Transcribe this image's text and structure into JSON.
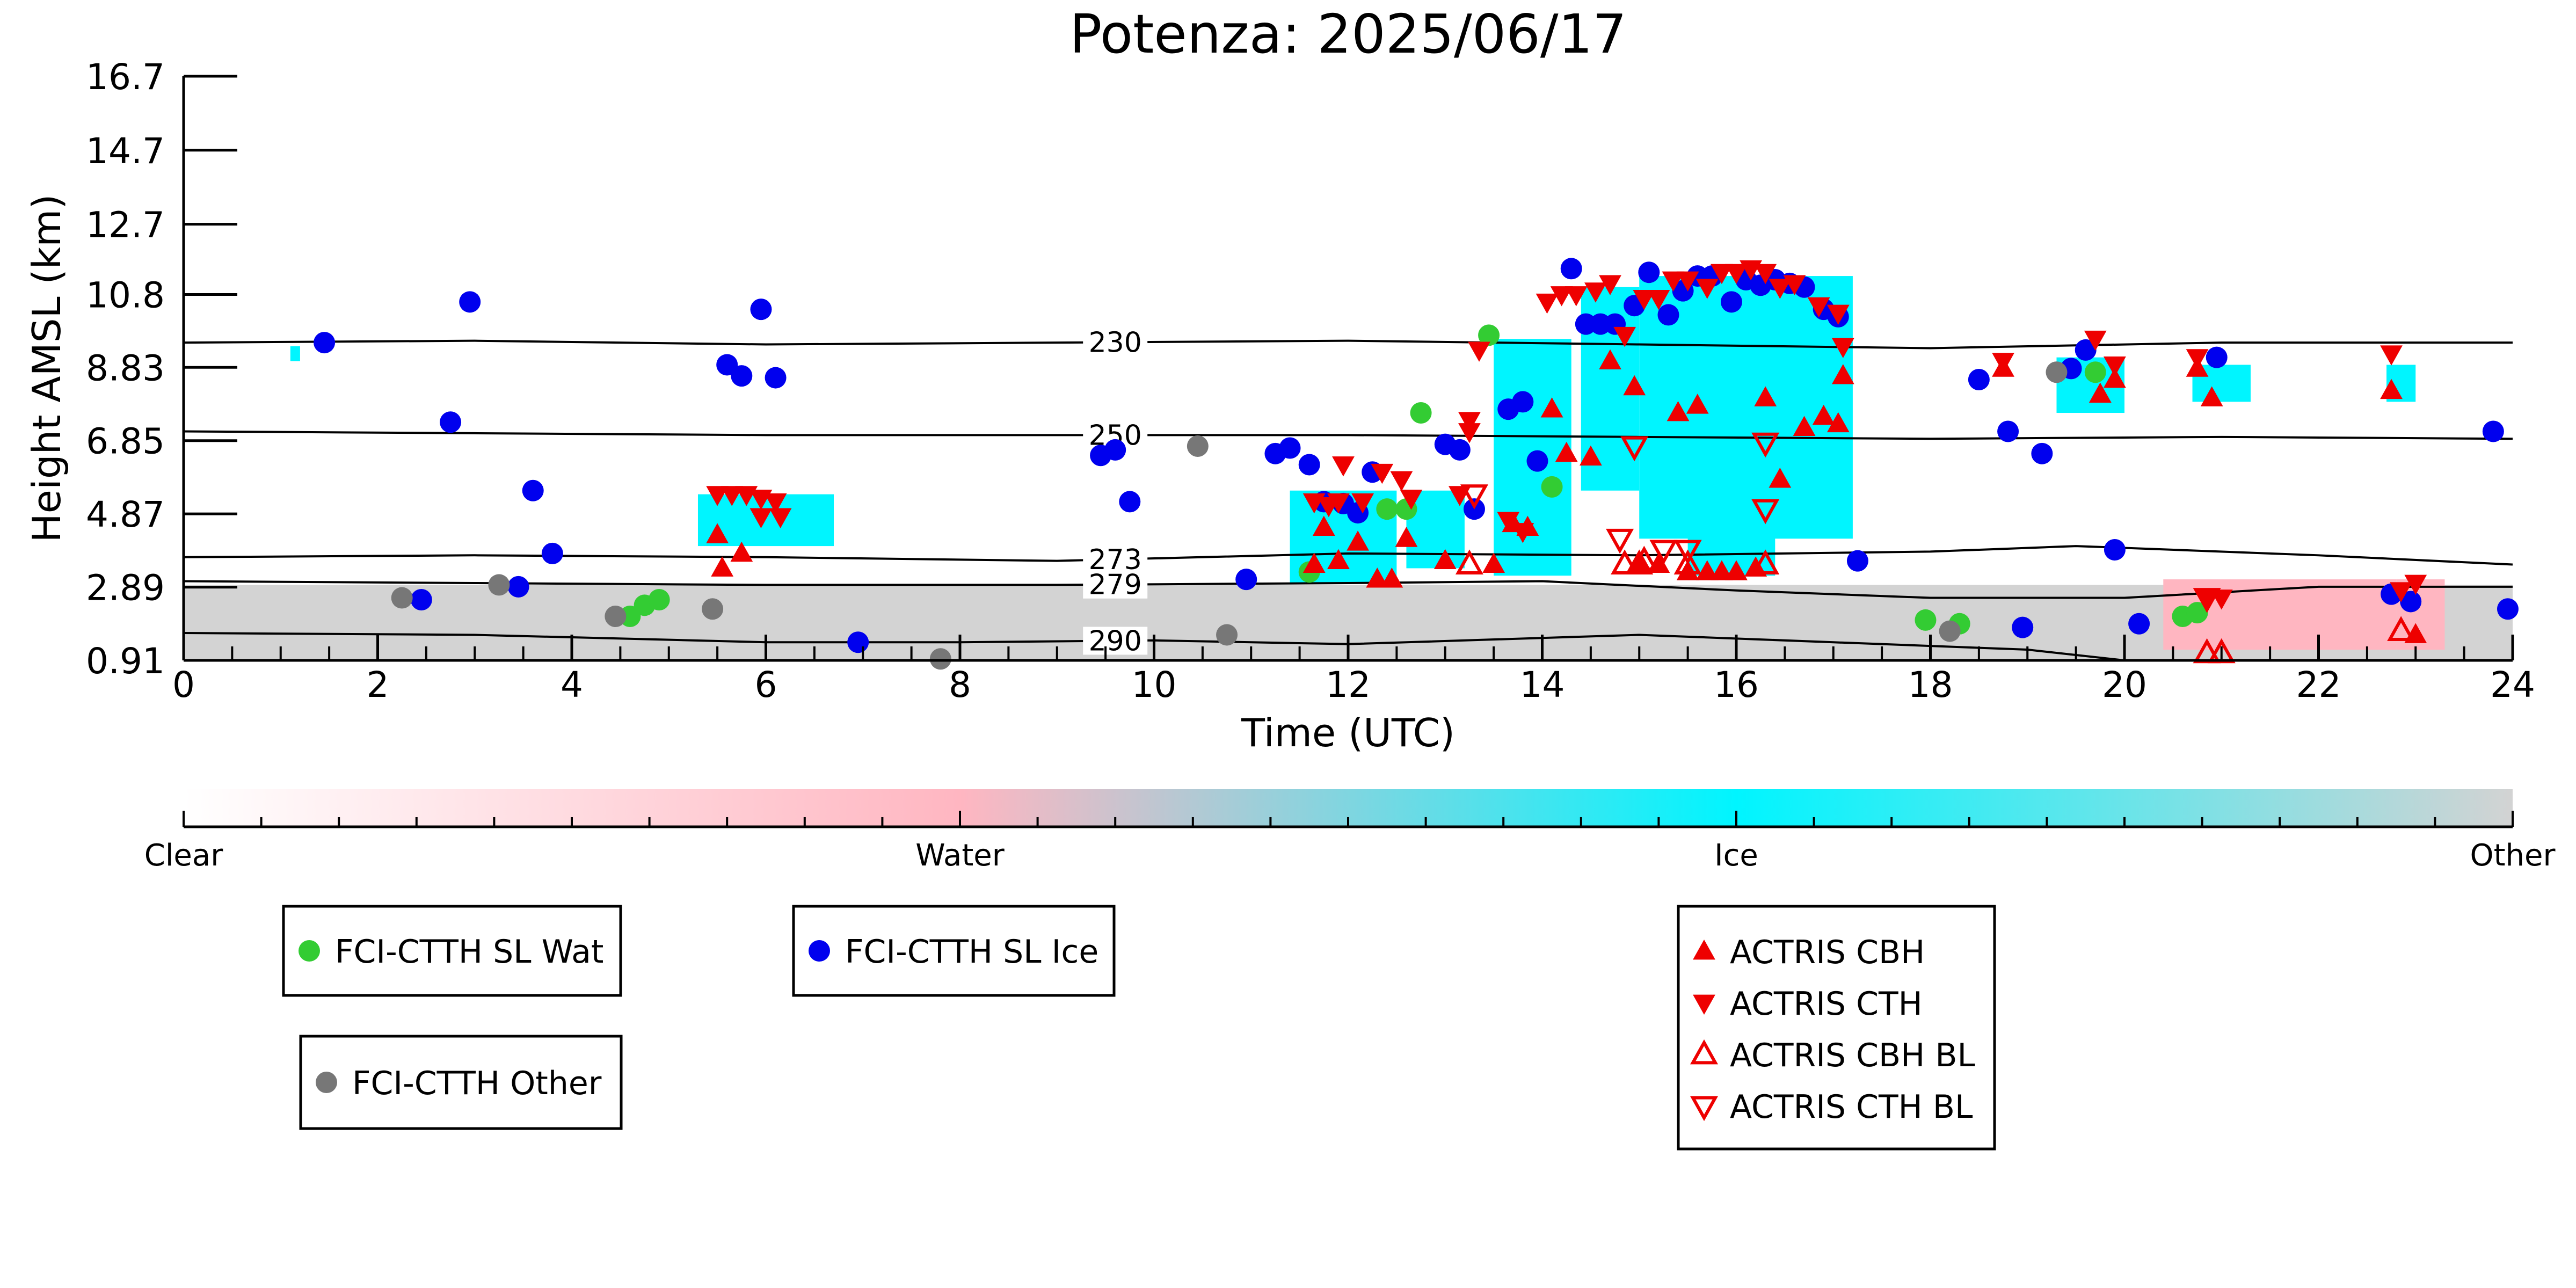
{
  "chart_data": {
    "type": "scatter",
    "title": "Potenza: 2025/06/17",
    "xlabel": "Time (UTC)",
    "ylabel": "Height AMSL (km)",
    "xlim": [
      0,
      24
    ],
    "ylim": [
      0.91,
      16.7
    ],
    "x_ticks": [
      "0",
      "2",
      "4",
      "6",
      "8",
      "10",
      "12",
      "14",
      "16",
      "18",
      "20",
      "22",
      "24"
    ],
    "y_ticks": [
      "0.91",
      "2.89",
      "4.87",
      "6.85",
      "8.83",
      "10.8",
      "12.7",
      "14.7",
      "16.7"
    ],
    "y_tick_values": [
      0.91,
      2.89,
      4.87,
      6.85,
      8.83,
      10.8,
      12.7,
      14.7,
      16.7
    ],
    "grid": false,
    "isotherms": [
      {
        "label": "230",
        "label_x": 9.6,
        "points": [
          [
            0,
            9.5
          ],
          [
            3,
            9.55
          ],
          [
            6,
            9.45
          ],
          [
            9,
            9.5
          ],
          [
            12,
            9.55
          ],
          [
            15,
            9.45
          ],
          [
            18,
            9.35
          ],
          [
            21,
            9.5
          ],
          [
            24,
            9.5
          ]
        ]
      },
      {
        "label": "250",
        "label_x": 9.6,
        "points": [
          [
            0,
            7.1
          ],
          [
            3,
            7.05
          ],
          [
            6,
            7.0
          ],
          [
            9,
            7.0
          ],
          [
            12,
            7.0
          ],
          [
            15,
            6.95
          ],
          [
            18,
            6.9
          ],
          [
            21,
            6.95
          ],
          [
            24,
            6.9
          ]
        ]
      },
      {
        "label": "273",
        "label_x": 9.6,
        "points": [
          [
            0,
            3.7
          ],
          [
            3,
            3.75
          ],
          [
            6,
            3.7
          ],
          [
            9,
            3.6
          ],
          [
            12,
            3.8
          ],
          [
            15,
            3.75
          ],
          [
            18,
            3.85
          ],
          [
            19.5,
            4.0
          ],
          [
            22,
            3.75
          ],
          [
            24,
            3.5
          ]
        ]
      },
      {
        "label": "279",
        "label_x": 9.6,
        "points": [
          [
            0,
            3.05
          ],
          [
            3,
            3.0
          ],
          [
            6,
            2.95
          ],
          [
            9,
            2.95
          ],
          [
            12,
            3.0
          ],
          [
            14,
            3.05
          ],
          [
            16,
            2.8
          ],
          [
            18,
            2.6
          ],
          [
            20,
            2.6
          ],
          [
            22,
            2.9
          ],
          [
            24,
            2.9
          ]
        ]
      },
      {
        "label": "290",
        "label_x": 9.6,
        "points": [
          [
            0,
            1.65
          ],
          [
            3,
            1.6
          ],
          [
            6,
            1.4
          ],
          [
            8,
            1.4
          ],
          [
            10,
            1.45
          ],
          [
            12,
            1.35
          ],
          [
            15,
            1.6
          ],
          [
            17,
            1.4
          ],
          [
            19,
            1.2
          ],
          [
            20,
            0.91
          ]
        ]
      }
    ],
    "cloud_mask_regions": [
      {
        "class": "Other",
        "x0": 0,
        "x1": 24,
        "y0": 0.91,
        "y1": 2.95
      },
      {
        "class": "Water",
        "x0": 20.4,
        "x1": 22.8,
        "y0": 1.2,
        "y1": 3.1
      },
      {
        "class": "Water",
        "x0": 22.8,
        "x1": 23.3,
        "y0": 1.2,
        "y1": 3.1
      },
      {
        "class": "Ice",
        "x0": 5.3,
        "x1": 6.7,
        "y0": 4.0,
        "y1": 5.4
      },
      {
        "class": "Ice",
        "x0": 11.4,
        "x1": 12.5,
        "y0": 3.0,
        "y1": 5.5
      },
      {
        "class": "Ice",
        "x0": 12.6,
        "x1": 13.2,
        "y0": 3.4,
        "y1": 5.5
      },
      {
        "class": "Ice",
        "x0": 13.5,
        "x1": 14.3,
        "y0": 3.2,
        "y1": 9.6
      },
      {
        "class": "Ice",
        "x0": 14.4,
        "x1": 15.0,
        "y0": 5.5,
        "y1": 11.0
      },
      {
        "class": "Ice",
        "x0": 15.0,
        "x1": 17.2,
        "y0": 4.2,
        "y1": 11.3
      },
      {
        "class": "Ice",
        "x0": 15.5,
        "x1": 16.4,
        "y0": 3.2,
        "y1": 6.5
      },
      {
        "class": "Ice",
        "x0": 19.3,
        "x1": 20.0,
        "y0": 7.6,
        "y1": 9.1
      },
      {
        "class": "Ice",
        "x0": 20.7,
        "x1": 21.3,
        "y0": 7.9,
        "y1": 8.9
      },
      {
        "class": "Ice",
        "x0": 22.7,
        "x1": 23.0,
        "y0": 7.9,
        "y1": 8.9
      },
      {
        "class": "Ice",
        "x0": 1.1,
        "x1": 1.2,
        "y0": 9.0,
        "y1": 9.4
      }
    ],
    "series": [
      {
        "name": "FCI-CTTH SL Wat",
        "marker": "circle",
        "color": "#33cc33",
        "points": [
          [
            4.6,
            2.1
          ],
          [
            4.75,
            2.4
          ],
          [
            4.9,
            2.55
          ],
          [
            11.6,
            3.3
          ],
          [
            12.4,
            5.0
          ],
          [
            12.6,
            5.0
          ],
          [
            12.75,
            7.6
          ],
          [
            13.45,
            9.7
          ],
          [
            14.1,
            5.6
          ],
          [
            17.95,
            2.0
          ],
          [
            18.3,
            1.9
          ],
          [
            19.7,
            8.7
          ],
          [
            20.6,
            2.1
          ],
          [
            20.75,
            2.2
          ]
        ]
      },
      {
        "name": "FCI-CTTH SL Ice",
        "marker": "circle",
        "color": "#0000ee",
        "points": [
          [
            1.45,
            9.5
          ],
          [
            2.45,
            2.55
          ],
          [
            2.75,
            7.35
          ],
          [
            2.95,
            10.6
          ],
          [
            3.45,
            2.9
          ],
          [
            3.6,
            5.5
          ],
          [
            3.8,
            3.8
          ],
          [
            5.6,
            8.9
          ],
          [
            5.75,
            8.6
          ],
          [
            5.95,
            10.4
          ],
          [
            6.1,
            8.55
          ],
          [
            6.95,
            1.4
          ],
          [
            9.45,
            6.45
          ],
          [
            9.6,
            6.6
          ],
          [
            9.75,
            5.2
          ],
          [
            10.95,
            3.1
          ],
          [
            11.25,
            6.5
          ],
          [
            11.4,
            6.65
          ],
          [
            11.6,
            6.2
          ],
          [
            11.75,
            5.2
          ],
          [
            11.95,
            5.15
          ],
          [
            12.1,
            4.9
          ],
          [
            12.25,
            6.0
          ],
          [
            13.0,
            6.75
          ],
          [
            13.15,
            6.6
          ],
          [
            13.3,
            5.0
          ],
          [
            13.65,
            7.7
          ],
          [
            13.8,
            7.9
          ],
          [
            13.95,
            6.3
          ],
          [
            14.3,
            11.5
          ],
          [
            14.45,
            10.0
          ],
          [
            14.6,
            10.0
          ],
          [
            14.75,
            10.0
          ],
          [
            14.95,
            10.5
          ],
          [
            15.1,
            11.4
          ],
          [
            15.3,
            10.25
          ],
          [
            15.45,
            10.9
          ],
          [
            15.6,
            11.3
          ],
          [
            15.75,
            11.3
          ],
          [
            15.95,
            10.6
          ],
          [
            16.1,
            11.2
          ],
          [
            16.25,
            11.05
          ],
          [
            16.4,
            11.2
          ],
          [
            16.55,
            11.1
          ],
          [
            16.7,
            11.0
          ],
          [
            16.9,
            10.4
          ],
          [
            17.05,
            10.2
          ],
          [
            17.25,
            3.6
          ],
          [
            18.5,
            8.5
          ],
          [
            18.8,
            7.1
          ],
          [
            18.95,
            1.8
          ],
          [
            19.15,
            6.5
          ],
          [
            19.45,
            8.8
          ],
          [
            19.6,
            9.3
          ],
          [
            19.9,
            3.9
          ],
          [
            20.15,
            1.9
          ],
          [
            20.95,
            9.1
          ],
          [
            22.75,
            2.7
          ],
          [
            22.95,
            2.5
          ],
          [
            23.8,
            7.1
          ],
          [
            23.95,
            2.3
          ]
        ]
      },
      {
        "name": "FCI-CTTH Other",
        "marker": "circle",
        "color": "#777777",
        "points": [
          [
            2.25,
            2.6
          ],
          [
            3.25,
            2.95
          ],
          [
            4.45,
            2.1
          ],
          [
            5.45,
            2.3
          ],
          [
            7.8,
            0.95
          ],
          [
            10.45,
            6.7
          ],
          [
            10.75,
            1.6
          ],
          [
            19.3,
            8.7
          ],
          [
            18.2,
            1.7
          ]
        ]
      },
      {
        "name": "ACTRIS CBH",
        "marker": "triangle-up",
        "color": "#ee0000",
        "filled": true,
        "points": [
          [
            5.5,
            4.3
          ],
          [
            5.55,
            3.4
          ],
          [
            5.75,
            3.8
          ],
          [
            11.65,
            3.5
          ],
          [
            11.75,
            4.5
          ],
          [
            11.9,
            3.6
          ],
          [
            12.1,
            4.1
          ],
          [
            12.3,
            3.1
          ],
          [
            12.45,
            3.1
          ],
          [
            12.6,
            4.2
          ],
          [
            13.0,
            3.6
          ],
          [
            13.5,
            3.5
          ],
          [
            13.7,
            4.6
          ],
          [
            13.85,
            4.5
          ],
          [
            14.1,
            7.7
          ],
          [
            14.25,
            6.5
          ],
          [
            14.5,
            6.4
          ],
          [
            14.7,
            9.0
          ],
          [
            14.95,
            8.3
          ],
          [
            15.0,
            3.5
          ],
          [
            15.2,
            3.5
          ],
          [
            15.4,
            7.6
          ],
          [
            15.5,
            3.3
          ],
          [
            15.6,
            7.8
          ],
          [
            15.7,
            3.3
          ],
          [
            15.85,
            3.3
          ],
          [
            16.0,
            3.3
          ],
          [
            16.2,
            3.4
          ],
          [
            16.3,
            8.0
          ],
          [
            16.45,
            5.8
          ],
          [
            16.7,
            7.2
          ],
          [
            16.9,
            7.5
          ],
          [
            17.05,
            7.3
          ],
          [
            17.1,
            8.6
          ],
          [
            18.75,
            8.8
          ],
          [
            19.75,
            8.1
          ],
          [
            19.9,
            8.5
          ],
          [
            20.75,
            8.8
          ],
          [
            20.9,
            8.0
          ],
          [
            22.75,
            8.2
          ],
          [
            23.0,
            1.6
          ]
        ]
      },
      {
        "name": "ACTRIS CTH",
        "marker": "triangle-down",
        "color": "#ee0000",
        "filled": true,
        "points": [
          [
            5.5,
            5.4
          ],
          [
            5.65,
            5.4
          ],
          [
            5.8,
            5.4
          ],
          [
            5.95,
            5.3
          ],
          [
            6.1,
            5.2
          ],
          [
            5.95,
            4.8
          ],
          [
            6.15,
            4.8
          ],
          [
            11.65,
            5.2
          ],
          [
            11.8,
            5.1
          ],
          [
            11.9,
            5.2
          ],
          [
            12.15,
            5.2
          ],
          [
            12.35,
            6.0
          ],
          [
            12.55,
            5.8
          ],
          [
            12.65,
            5.3
          ],
          [
            11.95,
            6.2
          ],
          [
            13.15,
            5.4
          ],
          [
            13.25,
            7.4
          ],
          [
            13.35,
            9.3
          ],
          [
            13.25,
            7.1
          ],
          [
            13.65,
            4.7
          ],
          [
            13.8,
            4.4
          ],
          [
            14.05,
            10.6
          ],
          [
            14.2,
            10.8
          ],
          [
            14.35,
            10.8
          ],
          [
            14.55,
            10.9
          ],
          [
            14.7,
            11.1
          ],
          [
            14.85,
            9.7
          ],
          [
            15.05,
            10.7
          ],
          [
            15.2,
            10.7
          ],
          [
            15.35,
            11.2
          ],
          [
            15.5,
            11.2
          ],
          [
            15.7,
            11.0
          ],
          [
            15.85,
            11.4
          ],
          [
            16.0,
            11.4
          ],
          [
            16.15,
            11.5
          ],
          [
            16.3,
            11.4
          ],
          [
            16.45,
            11.0
          ],
          [
            16.6,
            11.1
          ],
          [
            16.85,
            10.5
          ],
          [
            17.05,
            10.3
          ],
          [
            17.1,
            9.4
          ],
          [
            18.75,
            9.0
          ],
          [
            19.7,
            9.6
          ],
          [
            19.9,
            8.9
          ],
          [
            20.75,
            9.1
          ],
          [
            20.85,
            2.6
          ],
          [
            21.0,
            2.6
          ],
          [
            22.75,
            9.2
          ],
          [
            23.0,
            3.0
          ],
          [
            22.85,
            2.8
          ]
        ]
      },
      {
        "name": "ACTRIS CBH BL",
        "marker": "triangle-up",
        "color": "#ee0000",
        "filled": false,
        "points": [
          [
            13.25,
            3.5
          ],
          [
            14.85,
            3.5
          ],
          [
            15.0,
            3.5
          ],
          [
            15.05,
            3.6
          ],
          [
            15.5,
            3.5
          ],
          [
            16.3,
            3.5
          ],
          [
            20.85,
            1.1
          ],
          [
            21.0,
            1.1
          ],
          [
            22.85,
            1.7
          ]
        ]
      },
      {
        "name": "ACTRIS CTH BL",
        "marker": "triangle-down",
        "color": "#ee0000",
        "filled": false,
        "points": [
          [
            13.3,
            5.4
          ],
          [
            14.95,
            6.7
          ],
          [
            14.8,
            4.2
          ],
          [
            15.25,
            3.9
          ],
          [
            15.5,
            3.9
          ],
          [
            16.3,
            6.8
          ],
          [
            16.3,
            5.0
          ],
          [
            20.85,
            2.6
          ]
        ]
      }
    ]
  },
  "colorbar": {
    "labels": [
      "Clear",
      "Water",
      "Ice",
      "Other"
    ],
    "stops": [
      "#ffffff",
      "#ffb6c1",
      "#00f5ff",
      "#d3d3d3"
    ],
    "minor_ticks": 30
  },
  "class_colors": {
    "Clear": "#ffffff",
    "Water": "#ffb6c1",
    "Ice": "#00f5ff",
    "Other": "#d3d3d3"
  },
  "legends": [
    {
      "entries": [
        {
          "label": "FCI-CTTH SL Wat",
          "marker": "circle",
          "color": "#33cc33"
        }
      ]
    },
    {
      "entries": [
        {
          "label": "FCI-CTTH SL Ice",
          "marker": "circle",
          "color": "#0000ee"
        }
      ]
    },
    {
      "entries": [
        {
          "label": "FCI-CTTH Other",
          "marker": "circle",
          "color": "#777777"
        }
      ]
    },
    {
      "entries": [
        {
          "label": "ACTRIS CBH",
          "marker": "triangle-up",
          "color": "#ee0000",
          "filled": true
        },
        {
          "label": "ACTRIS CTH",
          "marker": "triangle-down",
          "color": "#ee0000",
          "filled": true
        },
        {
          "label": "ACTRIS CBH BL",
          "marker": "triangle-up",
          "color": "#ee0000",
          "filled": false
        },
        {
          "label": "ACTRIS CTH BL",
          "marker": "triangle-down",
          "color": "#ee0000",
          "filled": false
        }
      ]
    }
  ]
}
